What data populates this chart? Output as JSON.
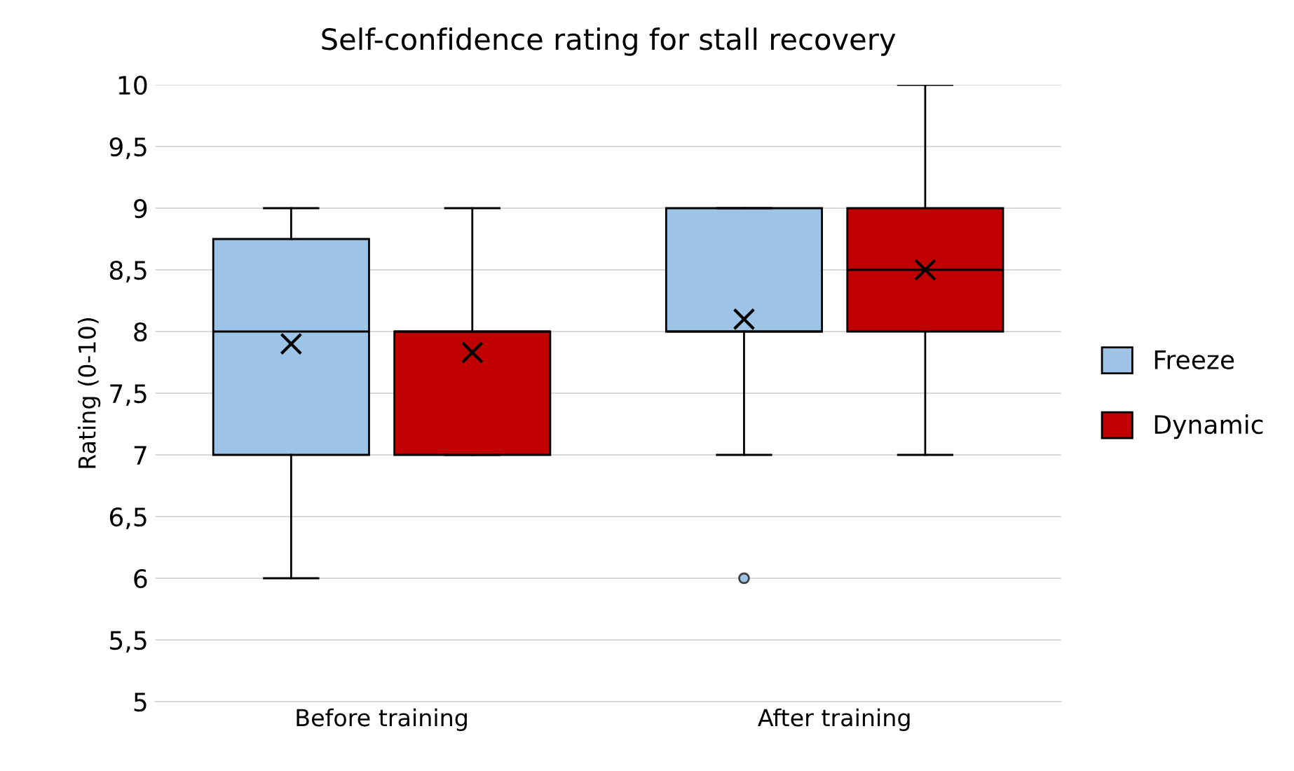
{
  "chart_data": {
    "type": "box",
    "title": "Self-confidence rating for stall recovery",
    "ylabel": "Rating (0-10)",
    "categories": [
      "Before training",
      "After training"
    ],
    "series": [
      {
        "name": "Freeze",
        "color": "#9dc3e6",
        "boxes": [
          {
            "low": 6,
            "q1": 7,
            "median": 8,
            "q3": 8.75,
            "high": 9,
            "mean": 7.9
          },
          {
            "low": 7,
            "q1": 8,
            "median": 8,
            "q3": 9,
            "high": 9,
            "mean": 8.1,
            "outliers": [
              6
            ]
          }
        ]
      },
      {
        "name": "Dynamic",
        "color": "#c00000",
        "boxes": [
          {
            "low": 7,
            "q1": 7,
            "median": 8,
            "q3": 8,
            "high": 9,
            "mean": 7.83
          },
          {
            "low": 7,
            "q1": 8,
            "median": 8.5,
            "q3": 9,
            "high": 10,
            "mean": 8.5
          }
        ]
      }
    ],
    "ylim": [
      5,
      10
    ],
    "yticks": [
      5,
      {
        "value": 5.5,
        "label": "5,5"
      },
      6,
      {
        "value": 6.5,
        "label": "6,5"
      },
      7,
      {
        "value": 7.5,
        "label": "7,5"
      },
      8,
      {
        "value": 8.5,
        "label": "8,5"
      },
      9,
      {
        "value": 9.5,
        "label": "9,5"
      },
      10
    ],
    "grid": "y",
    "legend": "right"
  }
}
